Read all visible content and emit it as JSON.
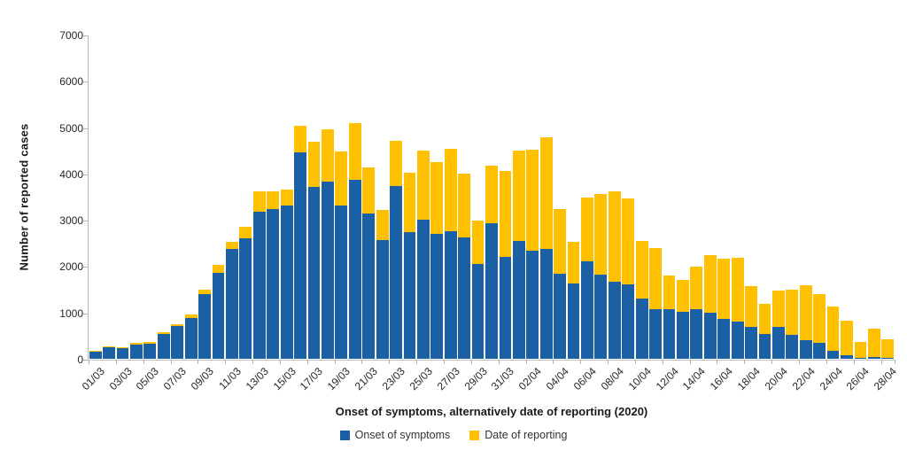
{
  "chart": {
    "y_axis_title": "Number of reported cases",
    "x_axis_title": "Onset of symptoms, alternatively date of reporting (2020)",
    "colors": {
      "onset_blue": "#1b5fa5",
      "reporting_yellow": "#ffc000",
      "axis_gray": "#b3b3b3",
      "tick_text": "#262626"
    }
  },
  "chart_data": {
    "type": "bar",
    "stacked": true,
    "title": "",
    "xlabel": "Onset of symptoms, alternatively date of reporting (2020)",
    "ylabel": "Number of reported cases",
    "ylim": [
      0,
      7000
    ],
    "y_ticks": [
      0,
      1000,
      2000,
      3000,
      4000,
      5000,
      6000,
      7000
    ],
    "grid": false,
    "legend_position": "bottom",
    "x_tick_interval": 2,
    "x_tick_labels": [
      "01/03",
      "03/03",
      "05/03",
      "07/03",
      "09/03",
      "11/03",
      "13/03",
      "15/03",
      "17/03",
      "19/03",
      "21/03",
      "23/03",
      "25/03",
      "27/03",
      "29/03",
      "31/03",
      "02/04",
      "04/04",
      "06/04",
      "08/04",
      "10/04",
      "12/04",
      "14/04",
      "16/04",
      "18/04",
      "20/04",
      "22/04",
      "24/04",
      "26/04",
      "28/04"
    ],
    "categories": [
      "01/03",
      "02/03",
      "03/03",
      "04/03",
      "05/03",
      "06/03",
      "07/03",
      "08/03",
      "09/03",
      "10/03",
      "11/03",
      "12/03",
      "13/03",
      "14/03",
      "15/03",
      "16/03",
      "17/03",
      "18/03",
      "19/03",
      "20/03",
      "21/03",
      "22/03",
      "23/03",
      "24/03",
      "25/03",
      "26/03",
      "27/03",
      "28/03",
      "29/03",
      "30/03",
      "31/03",
      "01/04",
      "02/04",
      "03/04",
      "04/04",
      "05/04",
      "06/04",
      "07/04",
      "08/04",
      "09/04",
      "10/04",
      "11/04",
      "12/04",
      "13/04",
      "14/04",
      "15/04",
      "16/04",
      "17/04",
      "18/04",
      "19/04",
      "20/04",
      "21/04",
      "22/04",
      "23/04",
      "24/04",
      "25/04",
      "26/04",
      "27/04",
      "28/04"
    ],
    "series": [
      {
        "name": "Onset of symptoms",
        "color": "#1b5fa5",
        "values": [
          160,
          250,
          230,
          310,
          320,
          530,
          700,
          880,
          1400,
          1860,
          2370,
          2600,
          3170,
          3240,
          3310,
          4450,
          3720,
          3830,
          3310,
          3860,
          3140,
          2560,
          3730,
          2740,
          3000,
          2700,
          2760,
          2630,
          2040,
          2920,
          2200,
          2550,
          2340,
          2380,
          1830,
          1630,
          2100,
          1820,
          1670,
          1600,
          1300,
          1080,
          1070,
          1010,
          1080,
          990,
          870,
          800,
          680,
          530,
          690,
          510,
          400,
          340,
          180,
          85,
          20,
          40,
          20
        ]
      },
      {
        "name": "Date of reporting",
        "color": "#ffc000",
        "values": [
          10,
          10,
          20,
          30,
          50,
          50,
          40,
          80,
          100,
          160,
          160,
          250,
          440,
          380,
          350,
          590,
          960,
          1130,
          1170,
          1230,
          990,
          650,
          980,
          1270,
          1500,
          1550,
          1770,
          1360,
          950,
          1250,
          1860,
          1940,
          2170,
          2410,
          1410,
          900,
          1380,
          1730,
          1950,
          1860,
          1250,
          1320,
          730,
          690,
          910,
          1250,
          1300,
          1390,
          890,
          650,
          780,
          990,
          1190,
          1060,
          950,
          745,
          350,
          620,
          410
        ]
      }
    ]
  }
}
